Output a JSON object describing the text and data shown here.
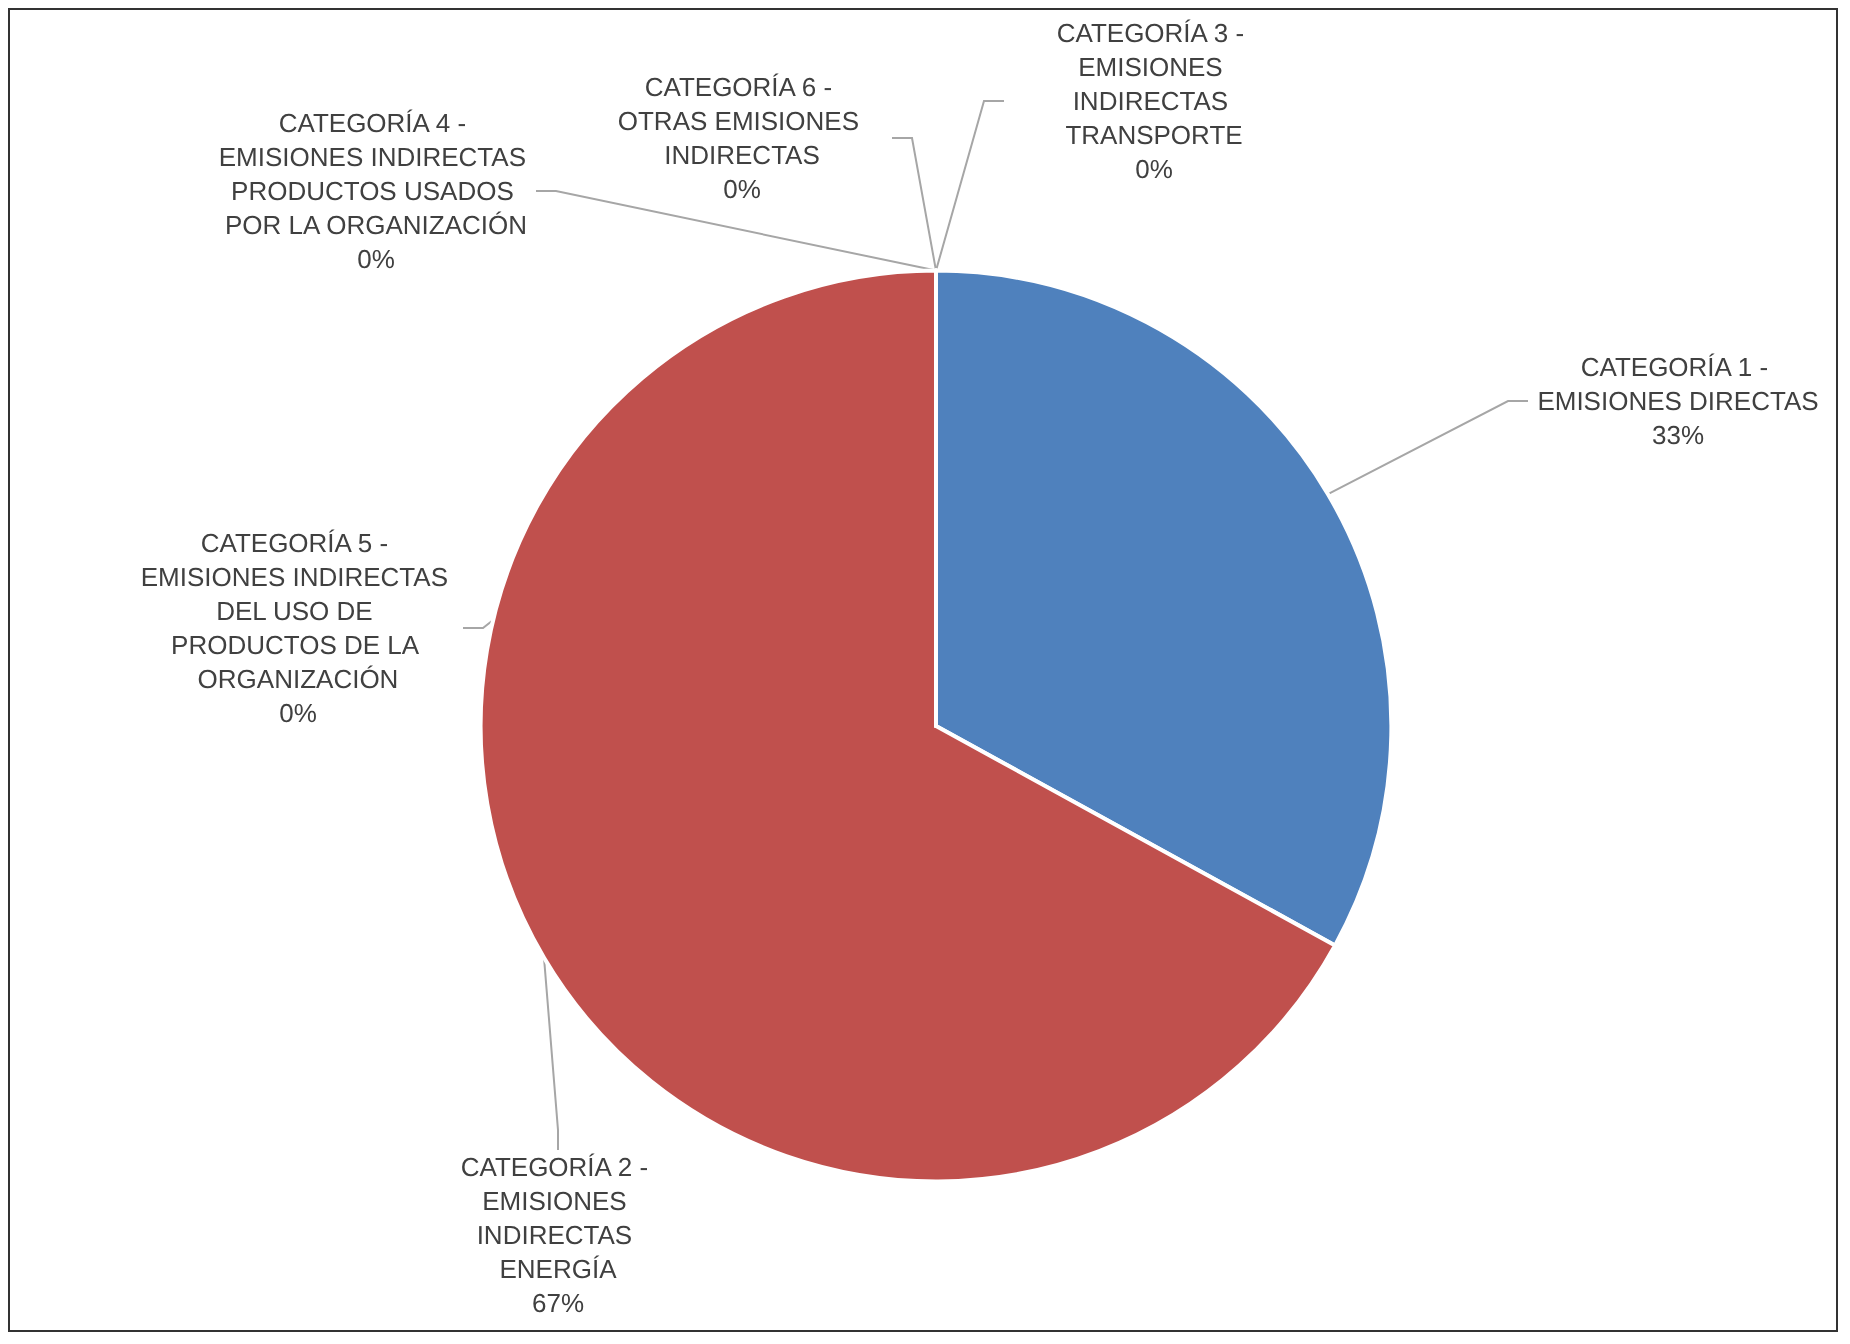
{
  "chart_data": {
    "type": "pie",
    "categories": [
      "CATEGORÍA 1 - EMISIONES DIRECTAS",
      "CATEGORÍA 2 - EMISIONES INDIRECTAS ENERGÍA",
      "CATEGORÍA 3 - EMISIONES INDIRECTAS TRANSPORTE",
      "CATEGORÍA 4 - EMISIONES INDIRECTAS PRODUCTOS USADOS POR LA ORGANIZACIÓN",
      "CATEGORÍA 5 - EMISIONES INDIRECTAS DEL USO DE PRODUCTOS DE LA ORGANIZACIÓN",
      "CATEGORÍA 6 - OTRAS EMISIONES INDIRECTAS"
    ],
    "values": [
      33,
      67,
      0,
      0,
      0,
      0
    ],
    "colors": [
      "#4f81bd",
      "#c0504d",
      "#9bbb59",
      "#8064a2",
      "#4bacc6",
      "#f79646"
    ],
    "value_labels": [
      "33%",
      "67%",
      "0%",
      "0%",
      "0%",
      "0%"
    ],
    "legend": false
  }
}
